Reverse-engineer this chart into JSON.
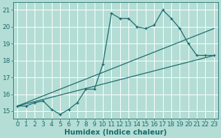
{
  "title": "",
  "xlabel": "Humidex (Indice chaleur)",
  "background_color": "#b3ddd5",
  "grid_color": "#ffffff",
  "line_color": "#1a6b6b",
  "xlim": [
    -0.5,
    23.5
  ],
  "ylim": [
    14.55,
    21.45
  ],
  "x_ticks": [
    0,
    1,
    2,
    3,
    4,
    5,
    6,
    7,
    8,
    9,
    10,
    11,
    12,
    13,
    14,
    15,
    16,
    17,
    18,
    19,
    20,
    21,
    22,
    23
  ],
  "y_ticks": [
    15,
    16,
    17,
    18,
    19,
    20,
    21
  ],
  "main_x": [
    0,
    1,
    2,
    3,
    4,
    5,
    6,
    7,
    8,
    9,
    10,
    11,
    12,
    13,
    14,
    15,
    16,
    17,
    18,
    19,
    20,
    21,
    22,
    23
  ],
  "main_y": [
    15.3,
    15.3,
    15.5,
    15.6,
    15.1,
    14.8,
    15.1,
    15.5,
    16.3,
    16.3,
    17.8,
    20.8,
    20.5,
    20.5,
    20.0,
    19.9,
    20.1,
    21.0,
    20.5,
    19.9,
    19.0,
    18.3,
    18.3,
    18.3
  ],
  "upper_line_x": [
    0,
    23
  ],
  "upper_line_y": [
    15.3,
    19.9
  ],
  "lower_line_x": [
    0,
    23
  ],
  "lower_line_y": [
    15.3,
    18.3
  ],
  "xlabel_fontsize": 7.5,
  "tick_fontsize": 6.5,
  "linewidth": 0.9,
  "marker_size": 3.0
}
